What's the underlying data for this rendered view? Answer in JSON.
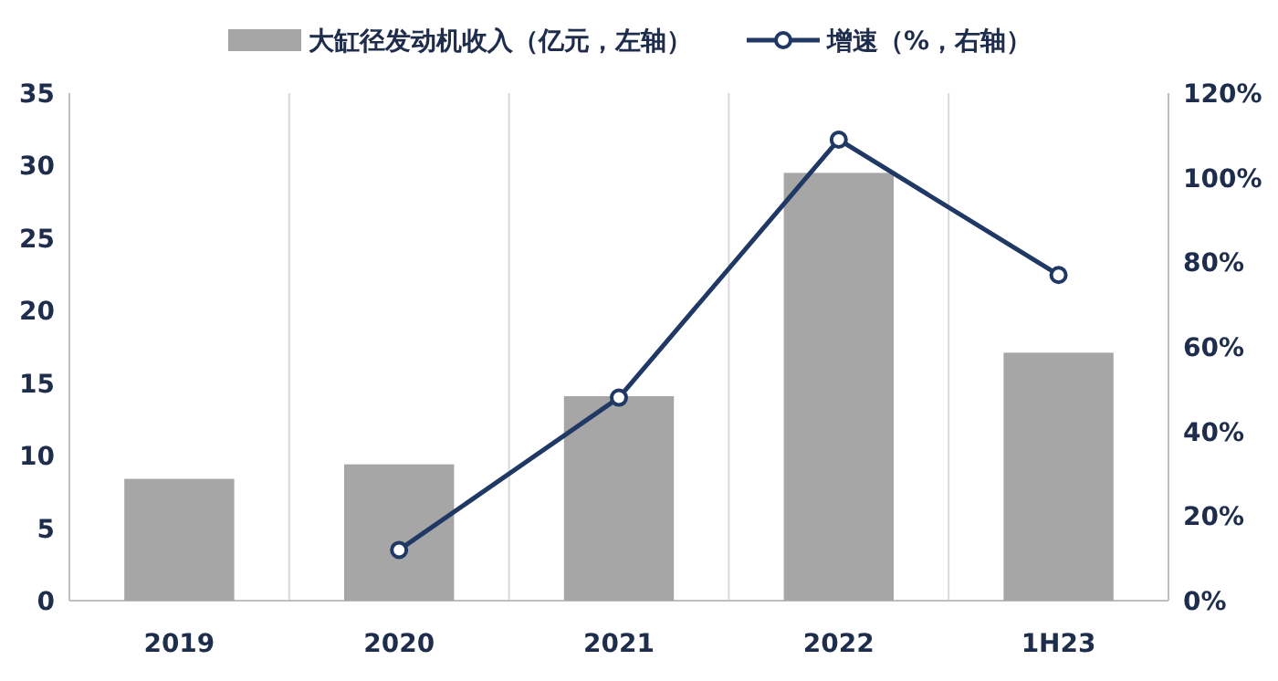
{
  "chart_data": {
    "type": "bar",
    "categories": [
      "2019",
      "2020",
      "2021",
      "2022",
      "1H23"
    ],
    "series": [
      {
        "name": "大缸径发动机收入（亿元，左轴）",
        "color": "#a6a6a6",
        "values": [
          8.4,
          9.4,
          14.1,
          29.5,
          17.1
        ]
      },
      {
        "name": "增速（%，右轴）",
        "type": "line",
        "axis": "y2",
        "color": "#1f3864",
        "marker": "circle",
        "values": [
          null,
          12,
          48,
          109,
          77
        ]
      }
    ],
    "ylim": [
      0,
      35
    ],
    "yticks": [
      0,
      5,
      10,
      15,
      20,
      25,
      30,
      35
    ],
    "y2lim": [
      0,
      120
    ],
    "y2ticks": [
      {
        "value": 0,
        "label": "0%"
      },
      {
        "value": 20,
        "label": "20%"
      },
      {
        "value": 40,
        "label": "40%"
      },
      {
        "value": 60,
        "label": "60%"
      },
      {
        "value": 80,
        "label": "80%"
      },
      {
        "value": 100,
        "label": "100%"
      },
      {
        "value": 120,
        "label": "120%"
      }
    ],
    "grid": "x",
    "legend": "top"
  }
}
